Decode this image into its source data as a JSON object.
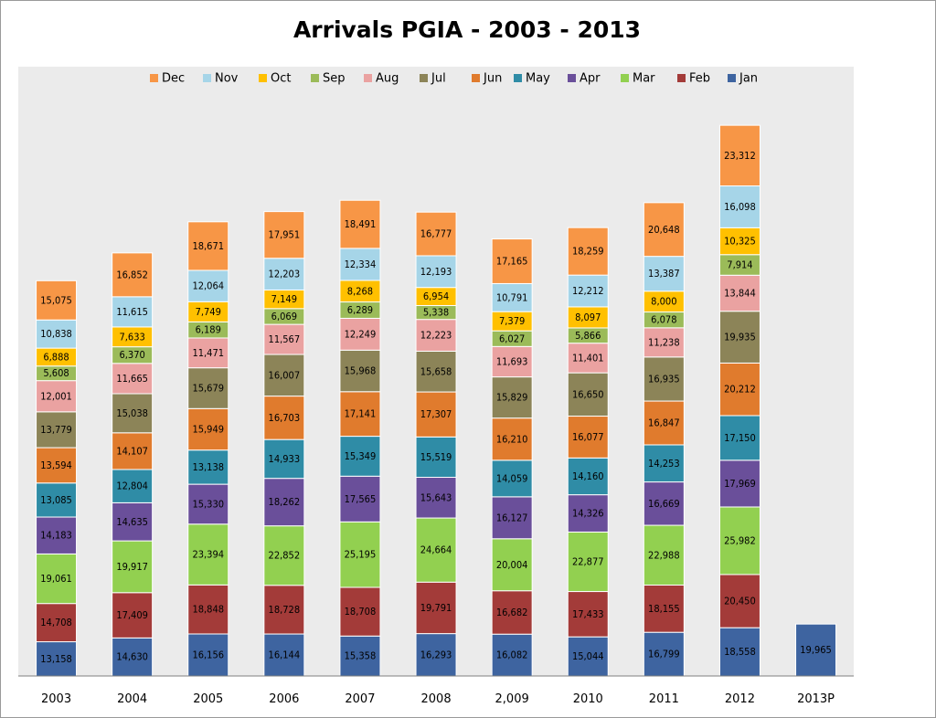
{
  "chart_data": {
    "type": "bar",
    "stacked": true,
    "title": "Arrivals PGIA - 2003 - 2013",
    "categories": [
      "2003",
      "2004",
      "2005",
      "2006",
      "2007",
      "2008",
      "2,009",
      "2010",
      "2011",
      "2012",
      "2013P"
    ],
    "series": [
      {
        "name": "Jan",
        "color": "#3e64a0",
        "values": [
          13158,
          14630,
          16156,
          16144,
          15358,
          16293,
          16082,
          15044,
          16799,
          18558,
          19965
        ],
        "labels": [
          "13,158",
          "14,630",
          "16,156",
          "16,144",
          "15,358",
          "16,293",
          "16,082",
          "15,044",
          "16,799",
          "18,558",
          "19,965"
        ]
      },
      {
        "name": "Feb",
        "color": "#a33b39",
        "values": [
          14708,
          17409,
          18848,
          18728,
          18708,
          19791,
          16682,
          17433,
          18155,
          20450,
          null
        ],
        "labels": [
          "14,708",
          "17,409",
          "18,848",
          "18,728",
          "18,708",
          "19,791",
          "16,682",
          "17,433",
          "18,155",
          "20,450",
          ""
        ]
      },
      {
        "name": "Mar",
        "color": "#92d050",
        "values": [
          19061,
          19917,
          23394,
          22852,
          25195,
          24664,
          20004,
          22877,
          22988,
          25982,
          null
        ],
        "labels": [
          "19,061",
          "19,917",
          "23,394",
          "22,852",
          "25,195",
          "24,664",
          "20,004",
          "22,877",
          "22,988",
          "25,982",
          ""
        ]
      },
      {
        "name": "Apr",
        "color": "#6a4f9a",
        "values": [
          14183,
          14635,
          15330,
          18262,
          17565,
          15643,
          16127,
          14326,
          16669,
          17969,
          null
        ],
        "labels": [
          "14,183",
          "14,635",
          "15,330",
          "18,262",
          "17,565",
          "15,643",
          "16,127",
          "14,326",
          "16,669",
          "17,969",
          ""
        ]
      },
      {
        "name": "May",
        "color": "#2f8ca6",
        "values": [
          13085,
          12804,
          13138,
          14933,
          15349,
          15519,
          14059,
          14160,
          14253,
          17150,
          null
        ],
        "labels": [
          "13,085",
          "12,804",
          "13,138",
          "14,933",
          "15,349",
          "15,519",
          "14,059",
          "14,160",
          "14,253",
          "17,150",
          ""
        ]
      },
      {
        "name": "Jun",
        "color": "#e07b2d",
        "values": [
          13594,
          14107,
          15949,
          16703,
          17141,
          17307,
          16210,
          16077,
          16847,
          20212,
          null
        ],
        "labels": [
          "13,594",
          "14,107",
          "15,949",
          "16,703",
          "17,141",
          "17,307",
          "16,210",
          "16,077",
          "16,847",
          "20,212",
          ""
        ]
      },
      {
        "name": "Jul",
        "color": "#8c8458",
        "values": [
          13779,
          15038,
          15679,
          16007,
          15968,
          15658,
          15829,
          16650,
          16935,
          19935,
          null
        ],
        "labels": [
          "13,779",
          "15,038",
          "15,679",
          "16,007",
          "15,968",
          "15,658",
          "15,829",
          "16,650",
          "16,935",
          "19,935",
          ""
        ]
      },
      {
        "name": "Aug",
        "color": "#eaa2a1",
        "values": [
          12001,
          11665,
          11471,
          11567,
          12249,
          12223,
          11693,
          11401,
          11238,
          13844,
          null
        ],
        "labels": [
          "12,001",
          "11,665",
          "11,471",
          "11,567",
          "12,249",
          "12,223",
          "11,693",
          "11,401",
          "11,238",
          "13,844",
          ""
        ]
      },
      {
        "name": "Sep",
        "color": "#9bbb59",
        "values": [
          5608,
          6370,
          6189,
          6069,
          6289,
          5338,
          6027,
          5866,
          6078,
          7914,
          null
        ],
        "labels": [
          "5,608",
          "6,370",
          "6,189",
          "6,069",
          "6,289",
          "5,338",
          "6,027",
          "5,866",
          "6,078",
          "7,914",
          ""
        ]
      },
      {
        "name": "Oct",
        "color": "#ffc000",
        "values": [
          6888,
          7633,
          7749,
          7149,
          8268,
          6954,
          7379,
          8097,
          8000,
          10325,
          null
        ],
        "labels": [
          "6,888",
          "7,633",
          "7,749",
          "7,149",
          "8,268",
          "6,954",
          "7,379",
          "8,097",
          "8,000",
          "10,325",
          ""
        ]
      },
      {
        "name": "Nov",
        "color": "#a6d5e8",
        "values": [
          10838,
          11615,
          12064,
          12203,
          12334,
          12193,
          10791,
          12212,
          13387,
          16098,
          null
        ],
        "labels": [
          "10,838",
          "11,615",
          "12,064",
          "12,203",
          "12,334",
          "12,193",
          "10,791",
          "12,212",
          "13,387",
          "16,098",
          ""
        ]
      },
      {
        "name": "Dec",
        "color": "#f79646",
        "values": [
          15075,
          16852,
          18671,
          17951,
          18491,
          16777,
          17165,
          18259,
          20648,
          23312,
          null
        ],
        "labels": [
          "15,075",
          "16,852",
          "18,671",
          "17,951",
          "18,491",
          "16,777",
          "17,165",
          "18,259",
          "20,648",
          "23,312",
          ""
        ]
      }
    ],
    "legend": {
      "position": "top",
      "order": [
        "Dec",
        "Nov",
        "Oct",
        "Sep",
        "Aug",
        "Jul",
        "Jun",
        "May",
        "Apr",
        "Mar",
        "Feb",
        "Jan"
      ]
    },
    "plot_background": "#ebebeb",
    "grid": false,
    "show_y_axis": false
  }
}
